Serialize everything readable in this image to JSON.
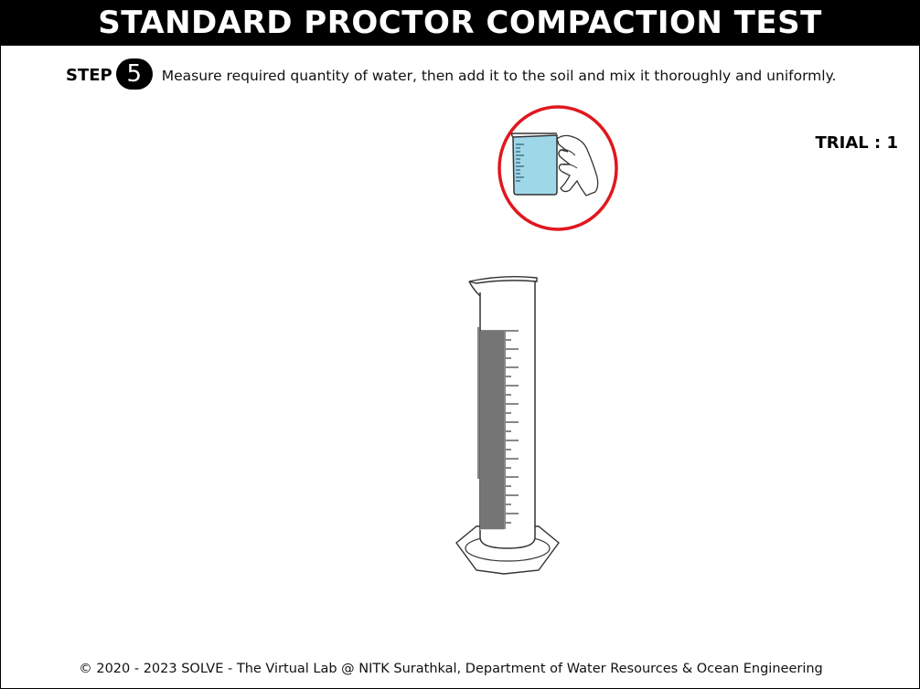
{
  "header": {
    "title": "STANDARD PROCTOR COMPACTION TEST"
  },
  "step": {
    "label": "STEP",
    "number": "5",
    "instruction": "Measure required quantity of water, then add it to the soil and mix it thoroughly and uniformly."
  },
  "trial": {
    "text": "TRIAL : 1"
  },
  "footer": {
    "copyright": "© 2020 - 2023 SOLVE - The Virtual Lab @ NITK Surathkal, Department of Water Resources & Ocean Engineering"
  },
  "colors": {
    "highlight_ring": "#e0171f",
    "water": "#9ed8e8",
    "title_bg": "#000000"
  }
}
